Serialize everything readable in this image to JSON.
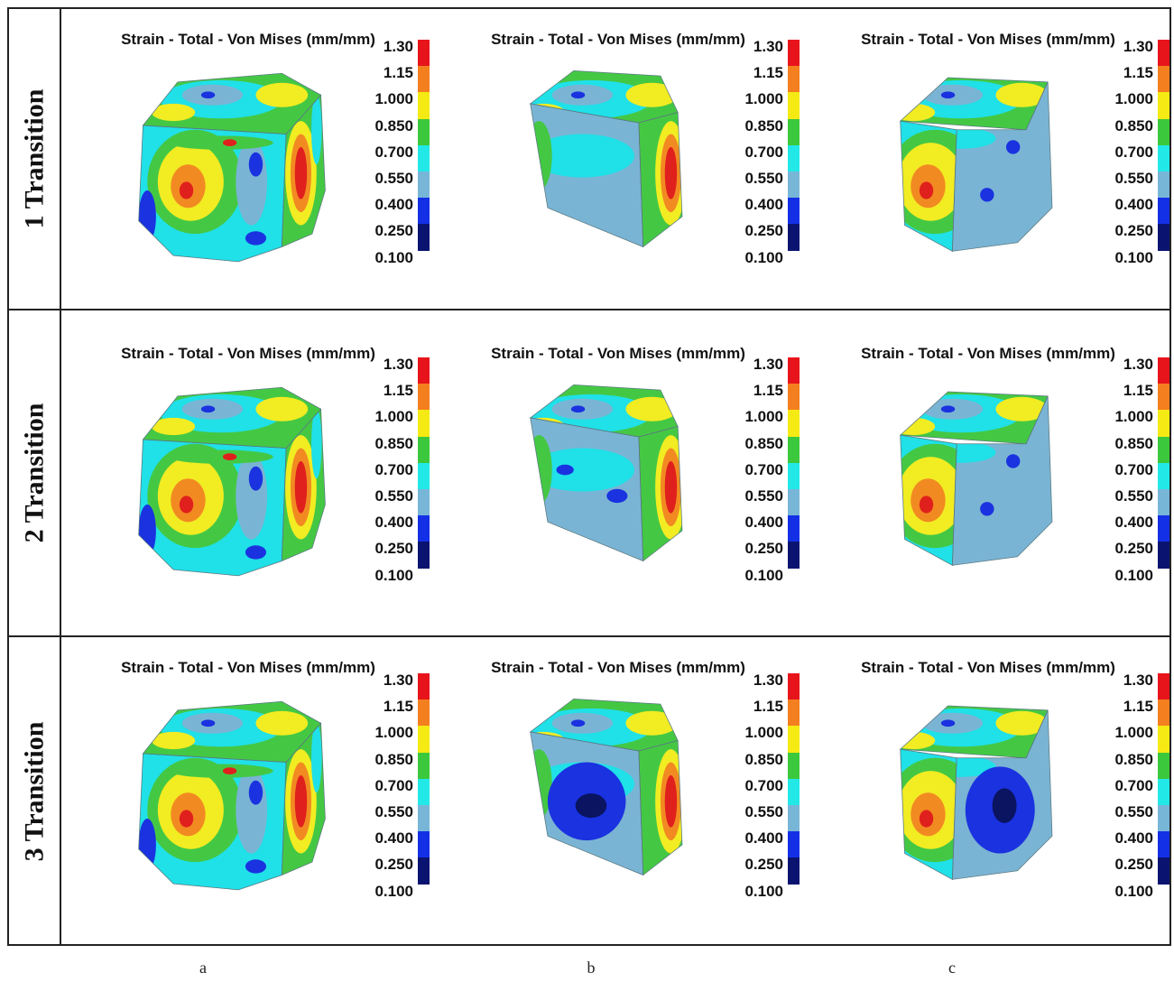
{
  "figure": {
    "rows": [
      {
        "label": "1 Transition"
      },
      {
        "label": "2 Transition"
      },
      {
        "label": "3 Transition"
      }
    ],
    "columns": [
      "a",
      "b",
      "c"
    ],
    "panel_title": "Strain - Total - Von Mises (mm/mm)",
    "legend": {
      "ticks": [
        "1.30",
        "1.15",
        "1.000",
        "0.850",
        "0.700",
        "0.550",
        "0.400",
        "0.250",
        "0.100"
      ],
      "colors": [
        "#e8141c",
        "#f47f1f",
        "#f5ea14",
        "#3cc83c",
        "#22e8e8",
        "#78b6d8",
        "#1430e6",
        "#0a1470"
      ]
    },
    "contour_colors": {
      "red": "#e0201c",
      "orange": "#f28a22",
      "yellow": "#f2ec22",
      "green": "#44c844",
      "cyan": "#20e0e8",
      "lightblue": "#7ab4d4",
      "blue": "#1a32e0",
      "navy": "#0a1460"
    }
  }
}
